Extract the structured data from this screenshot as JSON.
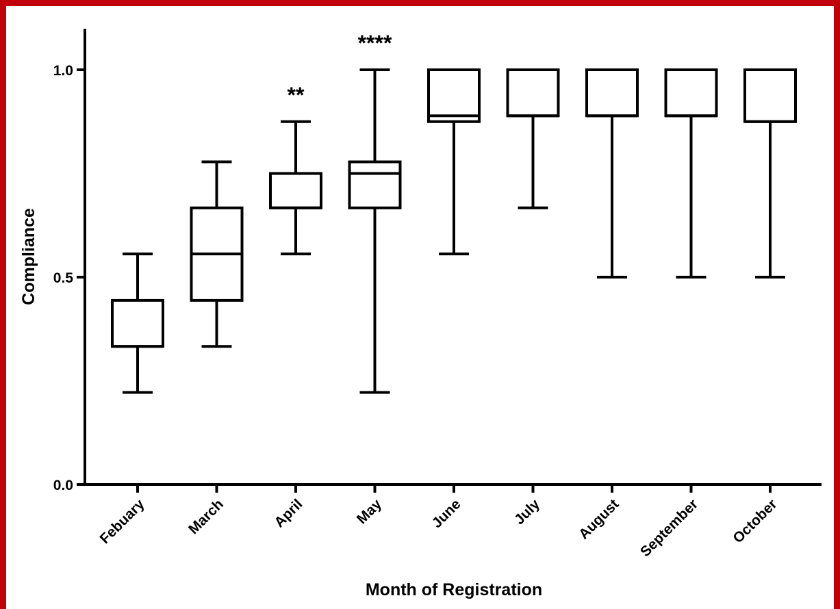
{
  "chart_data": {
    "type": "box",
    "xlabel": "Month of Registration",
    "ylabel": "Compliance",
    "ylim": [
      0.0,
      1.1
    ],
    "yticks": [
      0.0,
      0.5,
      1.0
    ],
    "ytick_labels": [
      "0.0",
      "0.5",
      "1.0"
    ],
    "categories": [
      "Febuary",
      "March",
      "April",
      "May",
      "June",
      "July",
      "August",
      "September",
      "October"
    ],
    "boxes": [
      {
        "min": 0.222,
        "q1": 0.333,
        "median": 0.333,
        "q3": 0.444,
        "max": 0.556,
        "annotation": ""
      },
      {
        "min": 0.333,
        "q1": 0.444,
        "median": 0.556,
        "q3": 0.667,
        "max": 0.778,
        "annotation": ""
      },
      {
        "min": 0.556,
        "q1": 0.667,
        "median": 0.667,
        "q3": 0.75,
        "max": 0.875,
        "annotation": "**"
      },
      {
        "min": 0.222,
        "q1": 0.667,
        "median": 0.75,
        "q3": 0.778,
        "max": 1.0,
        "annotation": "****"
      },
      {
        "min": 0.556,
        "q1": 0.875,
        "median": 0.889,
        "q3": 1.0,
        "max": 1.0,
        "annotation": ""
      },
      {
        "min": 0.667,
        "q1": 0.889,
        "median": 0.889,
        "q3": 1.0,
        "max": 1.0,
        "annotation": ""
      },
      {
        "min": 0.5,
        "q1": 0.889,
        "median": 0.889,
        "q3": 1.0,
        "max": 1.0,
        "annotation": ""
      },
      {
        "min": 0.5,
        "q1": 0.889,
        "median": 0.889,
        "q3": 1.0,
        "max": 1.0,
        "annotation": ""
      },
      {
        "min": 0.5,
        "q1": 0.875,
        "median": 0.875,
        "q3": 1.0,
        "max": 1.0,
        "annotation": ""
      }
    ],
    "grid": false,
    "legend": "none",
    "colors": {
      "frame": "#c0000b",
      "ink": "#000000",
      "background": "#ffffff"
    }
  }
}
